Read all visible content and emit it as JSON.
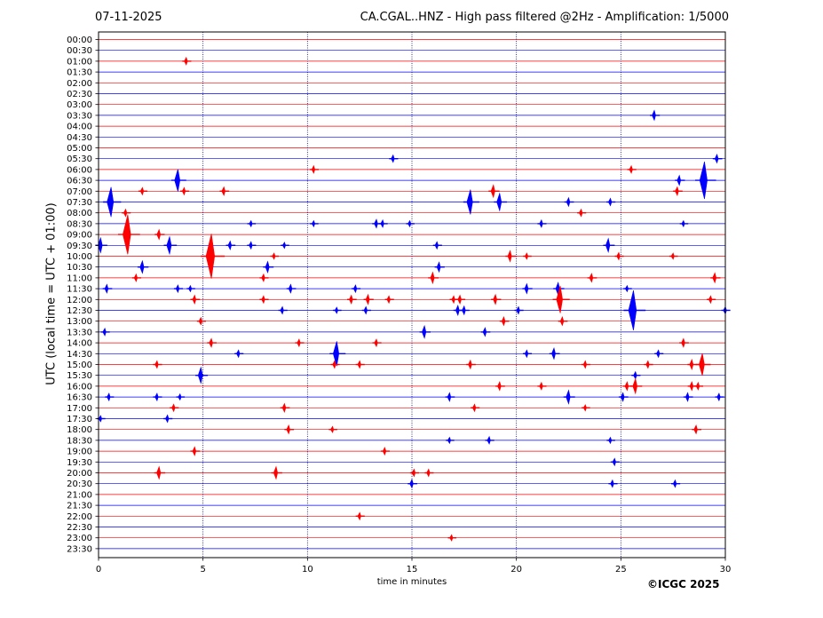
{
  "header": {
    "date": "07-11-2025",
    "title": "CA.CGAL..HNZ - High pass filtered @2Hz - Amplification: 1/5000"
  },
  "footer": {
    "copyright": "©ICGC 2025"
  },
  "chart_data": {
    "type": "line",
    "title": "CA.CGAL..HNZ - High pass filtered @2Hz - Amplification: 1/5000",
    "xlabel": "time in minutes",
    "ylabel": "UTC (local time = UTC + 01:00)",
    "xlim": [
      0,
      30
    ],
    "xticks": [
      0,
      5,
      10,
      15,
      20,
      25,
      30
    ],
    "grid": "vertical dotted lines at x = 5, 10, 15, 20, 25",
    "series_colors": [
      "#ff0000",
      "#0000ff"
    ],
    "color_rule": "rows alternate red (full hour) and blue (half hour)",
    "rows": [
      "00:00",
      "00:30",
      "01:00",
      "01:30",
      "02:00",
      "02:30",
      "03:00",
      "03:30",
      "04:00",
      "04:30",
      "05:00",
      "05:30",
      "06:00",
      "06:30",
      "07:00",
      "07:30",
      "08:00",
      "08:30",
      "09:00",
      "09:30",
      "10:00",
      "10:30",
      "11:00",
      "11:30",
      "12:00",
      "12:30",
      "13:00",
      "13:30",
      "14:00",
      "14:30",
      "15:00",
      "15:30",
      "16:00",
      "16:30",
      "17:00",
      "17:30",
      "18:00",
      "18:30",
      "19:00",
      "19:30",
      "20:00",
      "20:30",
      "21:00",
      "21:30",
      "22:00",
      "22:30",
      "23:00",
      "23:30"
    ],
    "events": [
      {
        "row": "01:00",
        "t": 4.2,
        "amp": 0.3
      },
      {
        "row": "03:30",
        "t": 26.6,
        "amp": 0.4
      },
      {
        "row": "05:30",
        "t": 14.1,
        "amp": 0.3
      },
      {
        "row": "05:30",
        "t": 29.6,
        "amp": 0.35
      },
      {
        "row": "06:00",
        "t": 10.3,
        "amp": 0.3
      },
      {
        "row": "06:00",
        "t": 25.5,
        "amp": 0.3
      },
      {
        "row": "06:30",
        "t": 3.8,
        "amp": 0.9
      },
      {
        "row": "06:30",
        "t": 27.8,
        "amp": 0.4
      },
      {
        "row": "06:30",
        "t": 29.0,
        "amp": 1.5
      },
      {
        "row": "07:00",
        "t": 2.1,
        "amp": 0.3
      },
      {
        "row": "07:00",
        "t": 4.1,
        "amp": 0.3
      },
      {
        "row": "07:00",
        "t": 6.0,
        "amp": 0.35
      },
      {
        "row": "07:00",
        "t": 18.9,
        "amp": 0.5
      },
      {
        "row": "07:00",
        "t": 27.7,
        "amp": 0.35
      },
      {
        "row": "07:30",
        "t": 0.6,
        "amp": 1.2
      },
      {
        "row": "07:30",
        "t": 17.8,
        "amp": 1.0
      },
      {
        "row": "07:30",
        "t": 19.2,
        "amp": 0.7
      },
      {
        "row": "07:30",
        "t": 22.5,
        "amp": 0.35
      },
      {
        "row": "07:30",
        "t": 24.5,
        "amp": 0.3
      },
      {
        "row": "08:00",
        "t": 1.3,
        "amp": 0.3
      },
      {
        "row": "08:00",
        "t": 23.1,
        "amp": 0.3
      },
      {
        "row": "08:30",
        "t": 7.3,
        "amp": 0.25
      },
      {
        "row": "08:30",
        "t": 10.3,
        "amp": 0.25
      },
      {
        "row": "08:30",
        "t": 13.3,
        "amp": 0.35
      },
      {
        "row": "08:30",
        "t": 13.6,
        "amp": 0.3
      },
      {
        "row": "08:30",
        "t": 14.9,
        "amp": 0.25
      },
      {
        "row": "08:30",
        "t": 21.2,
        "amp": 0.3
      },
      {
        "row": "08:30",
        "t": 28.0,
        "amp": 0.25
      },
      {
        "row": "09:00",
        "t": 1.4,
        "amp": 1.6
      },
      {
        "row": "09:00",
        "t": 2.9,
        "amp": 0.4
      },
      {
        "row": "09:30",
        "t": 0.1,
        "amp": 0.6
      },
      {
        "row": "09:30",
        "t": 3.4,
        "amp": 0.7
      },
      {
        "row": "09:30",
        "t": 6.3,
        "amp": 0.35
      },
      {
        "row": "09:30",
        "t": 7.3,
        "amp": 0.3
      },
      {
        "row": "09:30",
        "t": 8.9,
        "amp": 0.25
      },
      {
        "row": "09:30",
        "t": 16.2,
        "amp": 0.3
      },
      {
        "row": "09:30",
        "t": 24.4,
        "amp": 0.55
      },
      {
        "row": "10:00",
        "t": 5.4,
        "amp": 1.8
      },
      {
        "row": "10:00",
        "t": 8.4,
        "amp": 0.25
      },
      {
        "row": "10:00",
        "t": 19.7,
        "amp": 0.45
      },
      {
        "row": "10:00",
        "t": 20.5,
        "amp": 0.25
      },
      {
        "row": "10:00",
        "t": 24.9,
        "amp": 0.3
      },
      {
        "row": "10:00",
        "t": 27.5,
        "amp": 0.25
      },
      {
        "row": "10:30",
        "t": 2.1,
        "amp": 0.5
      },
      {
        "row": "10:30",
        "t": 8.1,
        "amp": 0.45
      },
      {
        "row": "10:30",
        "t": 16.3,
        "amp": 0.4
      },
      {
        "row": "11:00",
        "t": 1.8,
        "amp": 0.3
      },
      {
        "row": "11:00",
        "t": 7.9,
        "amp": 0.3
      },
      {
        "row": "11:00",
        "t": 16.0,
        "amp": 0.45
      },
      {
        "row": "11:00",
        "t": 23.6,
        "amp": 0.35
      },
      {
        "row": "11:00",
        "t": 29.5,
        "amp": 0.4
      },
      {
        "row": "11:30",
        "t": 0.4,
        "amp": 0.35
      },
      {
        "row": "11:30",
        "t": 3.8,
        "amp": 0.3
      },
      {
        "row": "11:30",
        "t": 4.4,
        "amp": 0.25
      },
      {
        "row": "11:30",
        "t": 9.2,
        "amp": 0.35
      },
      {
        "row": "11:30",
        "t": 12.3,
        "amp": 0.3
      },
      {
        "row": "11:30",
        "t": 20.5,
        "amp": 0.4
      },
      {
        "row": "11:30",
        "t": 22.0,
        "amp": 0.5
      },
      {
        "row": "11:30",
        "t": 25.3,
        "amp": 0.25
      },
      {
        "row": "12:00",
        "t": 4.6,
        "amp": 0.35
      },
      {
        "row": "12:00",
        "t": 7.9,
        "amp": 0.3
      },
      {
        "row": "12:00",
        "t": 12.1,
        "amp": 0.35
      },
      {
        "row": "12:00",
        "t": 12.9,
        "amp": 0.4
      },
      {
        "row": "12:00",
        "t": 13.9,
        "amp": 0.3
      },
      {
        "row": "12:00",
        "t": 17.0,
        "amp": 0.3
      },
      {
        "row": "12:00",
        "t": 17.3,
        "amp": 0.35
      },
      {
        "row": "12:00",
        "t": 19.0,
        "amp": 0.4
      },
      {
        "row": "12:00",
        "t": 22.1,
        "amp": 1.1
      },
      {
        "row": "12:00",
        "t": 29.3,
        "amp": 0.3
      },
      {
        "row": "12:30",
        "t": 8.8,
        "amp": 0.3
      },
      {
        "row": "12:30",
        "t": 11.4,
        "amp": 0.25
      },
      {
        "row": "12:30",
        "t": 12.8,
        "amp": 0.3
      },
      {
        "row": "12:30",
        "t": 17.2,
        "amp": 0.4
      },
      {
        "row": "12:30",
        "t": 17.5,
        "amp": 0.35
      },
      {
        "row": "12:30",
        "t": 20.1,
        "amp": 0.3
      },
      {
        "row": "12:30",
        "t": 25.6,
        "amp": 1.6
      },
      {
        "row": "12:30",
        "t": 30.0,
        "amp": 0.3
      },
      {
        "row": "13:00",
        "t": 4.9,
        "amp": 0.3
      },
      {
        "row": "13:00",
        "t": 19.4,
        "amp": 0.35
      },
      {
        "row": "13:00",
        "t": 22.2,
        "amp": 0.35
      },
      {
        "row": "13:30",
        "t": 0.3,
        "amp": 0.3
      },
      {
        "row": "13:30",
        "t": 15.6,
        "amp": 0.5
      },
      {
        "row": "13:30",
        "t": 18.5,
        "amp": 0.35
      },
      {
        "row": "14:00",
        "t": 5.4,
        "amp": 0.35
      },
      {
        "row": "14:00",
        "t": 9.6,
        "amp": 0.3
      },
      {
        "row": "14:00",
        "t": 13.3,
        "amp": 0.3
      },
      {
        "row": "14:00",
        "t": 28.0,
        "amp": 0.35
      },
      {
        "row": "14:30",
        "t": 6.7,
        "amp": 0.3
      },
      {
        "row": "14:30",
        "t": 11.4,
        "amp": 1.0
      },
      {
        "row": "14:30",
        "t": 20.5,
        "amp": 0.3
      },
      {
        "row": "14:30",
        "t": 21.8,
        "amp": 0.45
      },
      {
        "row": "14:30",
        "t": 26.8,
        "amp": 0.3
      },
      {
        "row": "15:00",
        "t": 2.8,
        "amp": 0.3
      },
      {
        "row": "15:00",
        "t": 11.3,
        "amp": 0.3
      },
      {
        "row": "15:00",
        "t": 12.5,
        "amp": 0.3
      },
      {
        "row": "15:00",
        "t": 17.8,
        "amp": 0.35
      },
      {
        "row": "15:00",
        "t": 23.3,
        "amp": 0.3
      },
      {
        "row": "15:00",
        "t": 26.3,
        "amp": 0.3
      },
      {
        "row": "15:00",
        "t": 28.4,
        "amp": 0.4
      },
      {
        "row": "15:00",
        "t": 28.9,
        "amp": 0.9
      },
      {
        "row": "15:30",
        "t": 4.9,
        "amp": 0.65
      },
      {
        "row": "15:30",
        "t": 25.7,
        "amp": 0.3
      },
      {
        "row": "16:00",
        "t": 19.2,
        "amp": 0.35
      },
      {
        "row": "16:00",
        "t": 21.2,
        "amp": 0.3
      },
      {
        "row": "16:00",
        "t": 25.3,
        "amp": 0.35
      },
      {
        "row": "16:00",
        "t": 25.7,
        "amp": 0.6
      },
      {
        "row": "16:00",
        "t": 28.4,
        "amp": 0.35
      },
      {
        "row": "16:00",
        "t": 28.7,
        "amp": 0.3
      },
      {
        "row": "16:30",
        "t": 0.5,
        "amp": 0.3
      },
      {
        "row": "16:30",
        "t": 2.8,
        "amp": 0.3
      },
      {
        "row": "16:30",
        "t": 3.9,
        "amp": 0.25
      },
      {
        "row": "16:30",
        "t": 16.8,
        "amp": 0.35
      },
      {
        "row": "16:30",
        "t": 22.5,
        "amp": 0.55
      },
      {
        "row": "16:30",
        "t": 25.1,
        "amp": 0.35
      },
      {
        "row": "16:30",
        "t": 28.2,
        "amp": 0.35
      },
      {
        "row": "16:30",
        "t": 29.7,
        "amp": 0.3
      },
      {
        "row": "17:00",
        "t": 3.6,
        "amp": 0.3
      },
      {
        "row": "17:00",
        "t": 8.9,
        "amp": 0.35
      },
      {
        "row": "17:00",
        "t": 18.0,
        "amp": 0.3
      },
      {
        "row": "17:00",
        "t": 23.3,
        "amp": 0.25
      },
      {
        "row": "17:30",
        "t": 0.1,
        "amp": 0.25
      },
      {
        "row": "17:30",
        "t": 3.3,
        "amp": 0.3
      },
      {
        "row": "18:00",
        "t": 9.1,
        "amp": 0.35
      },
      {
        "row": "18:00",
        "t": 11.2,
        "amp": 0.25
      },
      {
        "row": "18:00",
        "t": 28.6,
        "amp": 0.35
      },
      {
        "row": "18:30",
        "t": 16.8,
        "amp": 0.25
      },
      {
        "row": "18:30",
        "t": 18.7,
        "amp": 0.3
      },
      {
        "row": "18:30",
        "t": 24.5,
        "amp": 0.25
      },
      {
        "row": "19:00",
        "t": 4.6,
        "amp": 0.35
      },
      {
        "row": "19:00",
        "t": 13.7,
        "amp": 0.3
      },
      {
        "row": "19:30",
        "t": 24.7,
        "amp": 0.3
      },
      {
        "row": "20:00",
        "t": 2.9,
        "amp": 0.5
      },
      {
        "row": "20:00",
        "t": 8.5,
        "amp": 0.5
      },
      {
        "row": "20:00",
        "t": 15.1,
        "amp": 0.3
      },
      {
        "row": "20:00",
        "t": 15.8,
        "amp": 0.3
      },
      {
        "row": "20:30",
        "t": 15.0,
        "amp": 0.35
      },
      {
        "row": "20:30",
        "t": 24.6,
        "amp": 0.3
      },
      {
        "row": "20:30",
        "t": 27.6,
        "amp": 0.3
      },
      {
        "row": "22:00",
        "t": 12.5,
        "amp": 0.3
      },
      {
        "row": "23:00",
        "t": 16.9,
        "amp": 0.25
      }
    ]
  }
}
